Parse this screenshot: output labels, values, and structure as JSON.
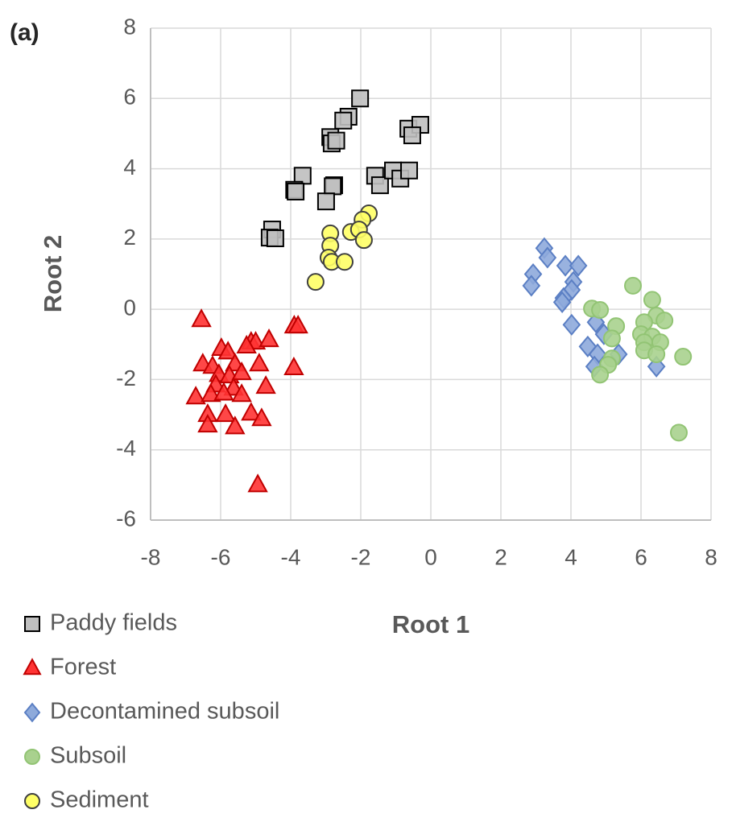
{
  "chart_data": {
    "type": "scatter",
    "panel_label": "(a)",
    "x_label": "Root 1",
    "y_label": "Root 2",
    "xlim": [
      -8,
      8
    ],
    "ylim": [
      -6,
      8
    ],
    "xticks": [
      -8,
      -6,
      -4,
      -2,
      0,
      2,
      4,
      6,
      8
    ],
    "yticks": [
      -6,
      -4,
      -2,
      0,
      2,
      4,
      6,
      8
    ],
    "grid": true,
    "series": [
      {
        "name": "Paddy fields",
        "marker": "square",
        "color": "#bfbfbf",
        "edgecolor": "#000000",
        "x": [
          -2.02,
          -2.35,
          -2.5,
          -2.87,
          -2.83,
          -2.7,
          -0.64,
          -0.3,
          -0.53,
          -3.66,
          -3.9,
          -3.86,
          -2.76,
          -2.8,
          -1.59,
          -1.45,
          -1.08,
          -0.87,
          -0.62,
          -2.99,
          -4.53,
          -4.6,
          -4.44
        ],
        "values": [
          6.0,
          5.48,
          5.37,
          4.9,
          4.72,
          4.8,
          5.14,
          5.25,
          4.95,
          3.8,
          3.4,
          3.35,
          3.53,
          3.5,
          3.8,
          3.53,
          3.95,
          3.72,
          3.95,
          3.07,
          2.27,
          2.04,
          2.02
        ]
      },
      {
        "name": "Forest",
        "marker": "triangle",
        "color": "#ff3333",
        "edgecolor": "#c00000",
        "x": [
          -6.55,
          -3.9,
          -3.79,
          -5.13,
          -5.0,
          -5.26,
          -4.62,
          -5.98,
          -5.79,
          -6.51,
          -6.23,
          -5.59,
          -4.9,
          -3.91,
          -6.05,
          -5.75,
          -5.4,
          -6.14,
          -5.63,
          -4.71,
          -6.71,
          -6.28,
          -5.91,
          -5.4,
          -6.37,
          -5.86,
          -5.13,
          -4.83,
          -6.37,
          -5.59,
          -4.94
        ],
        "values": [
          -0.3,
          -0.48,
          -0.48,
          -0.94,
          -0.94,
          -1.05,
          -0.87,
          -1.12,
          -1.22,
          -1.56,
          -1.63,
          -1.56,
          -1.56,
          -1.67,
          -1.86,
          -1.9,
          -1.81,
          -2.16,
          -2.25,
          -2.2,
          -2.5,
          -2.43,
          -2.39,
          -2.43,
          -3.0,
          -3.0,
          -2.96,
          -3.12,
          -3.3,
          -3.35,
          -5.0
        ]
      },
      {
        "name": "Decontamined subsoil",
        "marker": "diamond",
        "color": "#8eaadb",
        "edgecolor": "#5b7fc4",
        "x": [
          3.24,
          3.33,
          2.92,
          2.87,
          3.84,
          4.21,
          4.07,
          4.02,
          3.79,
          3.75,
          4.02,
          4.48,
          4.76,
          4.67,
          5.36,
          6.44,
          4.71,
          4.94
        ],
        "values": [
          1.74,
          1.47,
          1.0,
          0.67,
          1.24,
          1.24,
          0.78,
          0.55,
          0.32,
          0.2,
          -0.44,
          -1.06,
          -1.28,
          -1.63,
          -1.28,
          -1.63,
          -0.37,
          -0.71
        ]
      },
      {
        "name": "Subsoil",
        "marker": "circle",
        "color": "#a9d18e",
        "edgecolor": "#92c474",
        "x": [
          5.77,
          6.32,
          4.6,
          4.83,
          6.44,
          6.09,
          6.67,
          5.29,
          6.0,
          6.32,
          5.17,
          6.09,
          6.55,
          7.2,
          6.09,
          6.44,
          5.17,
          5.06,
          4.83,
          7.08
        ],
        "values": [
          0.67,
          0.27,
          0.02,
          -0.02,
          -0.18,
          -0.37,
          -0.32,
          -0.48,
          -0.71,
          -0.78,
          -0.83,
          -0.94,
          -0.94,
          -1.35,
          -1.17,
          -1.28,
          -1.4,
          -1.58,
          -1.86,
          -3.51
        ]
      },
      {
        "name": "Sediment",
        "marker": "circle",
        "color": "#ffff66",
        "edgecolor": "#404040",
        "x": [
          -1.77,
          -1.95,
          -2.28,
          -2.05,
          -1.91,
          -2.87,
          -2.87,
          -2.92,
          -2.83,
          -2.46,
          -3.29
        ],
        "values": [
          2.73,
          2.55,
          2.2,
          2.27,
          1.97,
          2.16,
          1.81,
          1.47,
          1.35,
          1.35,
          0.78
        ]
      }
    ]
  }
}
